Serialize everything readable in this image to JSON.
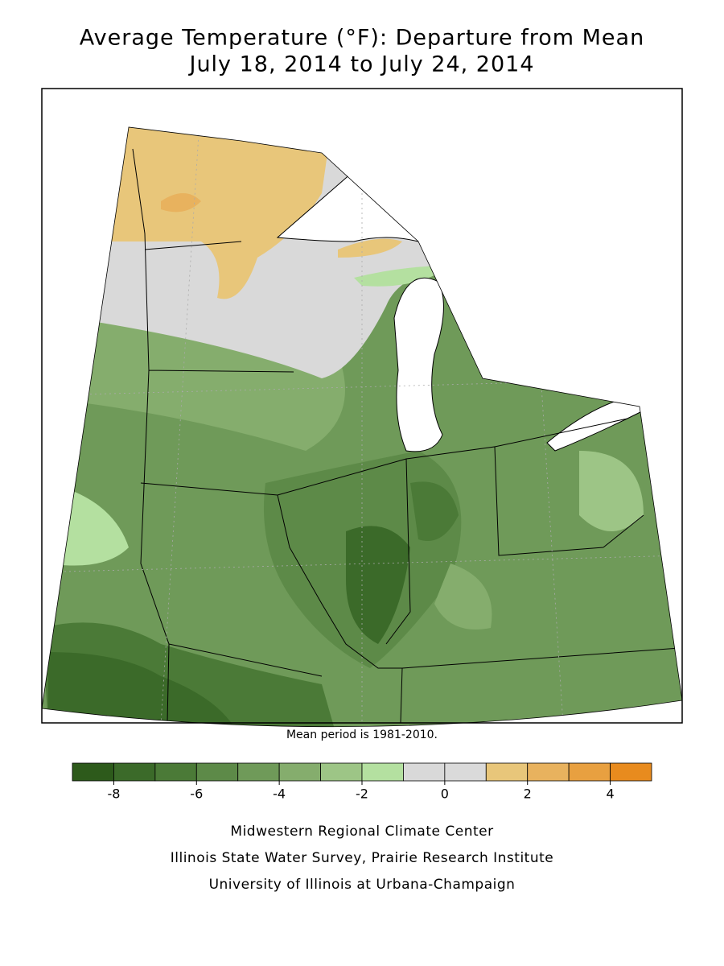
{
  "title": [
    "Average Temperature (°F): Departure from Mean",
    "July 18, 2014 to July 24, 2014"
  ],
  "note": "Mean period is 1981-2010.",
  "legend": {
    "bins": [
      -9,
      -8,
      -7,
      -6,
      -5,
      -4,
      -3,
      -2,
      -1,
      0,
      1,
      2,
      3,
      4,
      5
    ],
    "colors": [
      "#2d5a1b",
      "#3b6a29",
      "#4b7a37",
      "#5d8a48",
      "#6f9a59",
      "#85ad6d",
      "#9dc586",
      "#b4e0a0",
      "#d9d9d9",
      "#dadada",
      "#e8c67a",
      "#e8b25e",
      "#e8a040",
      "#e88b1e"
    ],
    "ticks": [
      -8,
      -6,
      -4,
      -2,
      0,
      2,
      4
    ]
  },
  "credits": [
    "Midwestern Regional Climate Center",
    "Illinois State Water Survey, Prairie Research Institute",
    "University of Illinois at Urbana-Champaign"
  ]
}
